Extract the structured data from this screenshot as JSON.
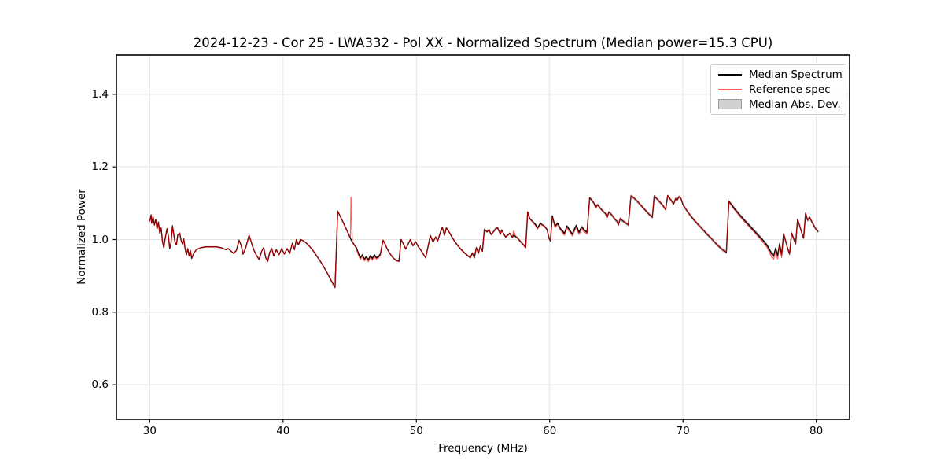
{
  "colors": {
    "median_line": "#000000",
    "reference_line": "#ff0000",
    "reference_legend": "#ff5959",
    "mad_band": "#c8c8c8",
    "grid": "#e4e4e4",
    "spine": "#000000",
    "background": "#ffffff"
  },
  "chart_data": {
    "type": "line",
    "title": "2024-12-23 - Cor 25 - LWA332 - Pol XX - Normalized Spectrum (Median power=15.3 CPU)",
    "xlabel": "Frequency (MHz)",
    "ylabel": "Normalized Power",
    "xlim": [
      27.5,
      82.5
    ],
    "ylim": [
      0.505,
      1.508
    ],
    "grid": true,
    "x_ticks": [
      30,
      40,
      50,
      60,
      70,
      80
    ],
    "x_tick_labels": [
      "30",
      "40",
      "50",
      "60",
      "70",
      "80"
    ],
    "y_ticks": [
      0.6,
      0.8,
      1.0,
      1.2,
      1.4
    ],
    "y_tick_labels": [
      "0.6",
      "0.8",
      "1.0",
      "1.2",
      "1.4"
    ],
    "legend": {
      "position": "upper right",
      "items": [
        {
          "label": "Median Spectrum",
          "type": "line"
        },
        {
          "label": "Reference spec",
          "type": "line"
        },
        {
          "label": "Median Abs. Dev.",
          "type": "patch"
        }
      ]
    },
    "points_format": "[frequency_MHz, median_power, reference_minus_median]",
    "points": [
      [
        30.0,
        1.05,
        0
      ],
      [
        30.1,
        1.068,
        0
      ],
      [
        30.15,
        1.045,
        0
      ],
      [
        30.25,
        1.062,
        0
      ],
      [
        30.35,
        1.04,
        0
      ],
      [
        30.45,
        1.055,
        0
      ],
      [
        30.55,
        1.03,
        0
      ],
      [
        30.65,
        1.048,
        0
      ],
      [
        30.75,
        1.018,
        0
      ],
      [
        30.85,
        1.032,
        0
      ],
      [
        30.95,
        0.996,
        0
      ],
      [
        31.05,
        0.978,
        0
      ],
      [
        31.15,
        1.002,
        0
      ],
      [
        31.3,
        1.03,
        0
      ],
      [
        31.4,
        1.008,
        0
      ],
      [
        31.5,
        0.975,
        0
      ],
      [
        31.6,
        0.992,
        0
      ],
      [
        31.7,
        1.038,
        0
      ],
      [
        31.8,
        1.015,
        0
      ],
      [
        31.9,
        0.992,
        0
      ],
      [
        32.0,
        0.985,
        0
      ],
      [
        32.1,
        1.012,
        0
      ],
      [
        32.25,
        1.018,
        0
      ],
      [
        32.35,
        0.998,
        0
      ],
      [
        32.45,
        0.988,
        0
      ],
      [
        32.55,
        1.002,
        0
      ],
      [
        32.65,
        0.975,
        0
      ],
      [
        32.75,
        0.958,
        0
      ],
      [
        32.85,
        0.975,
        0
      ],
      [
        32.95,
        0.955,
        0
      ],
      [
        33.05,
        0.97,
        0
      ],
      [
        33.15,
        0.948,
        0
      ],
      [
        33.3,
        0.962,
        0
      ],
      [
        33.5,
        0.972,
        0
      ],
      [
        33.8,
        0.977,
        0
      ],
      [
        34.2,
        0.98,
        0
      ],
      [
        34.6,
        0.98,
        0
      ],
      [
        35.0,
        0.98,
        0
      ],
      [
        35.4,
        0.977,
        0
      ],
      [
        35.7,
        0.972,
        0
      ],
      [
        35.9,
        0.975,
        0
      ],
      [
        36.1,
        0.968,
        0
      ],
      [
        36.3,
        0.962,
        0
      ],
      [
        36.5,
        0.97,
        0
      ],
      [
        36.7,
        0.998,
        0
      ],
      [
        36.85,
        0.985,
        0
      ],
      [
        37.0,
        0.96,
        0
      ],
      [
        37.2,
        0.978,
        0
      ],
      [
        37.45,
        1.012,
        0
      ],
      [
        37.6,
        0.995,
        0
      ],
      [
        37.8,
        0.972,
        0
      ],
      [
        38.0,
        0.957,
        0
      ],
      [
        38.2,
        0.945,
        0
      ],
      [
        38.4,
        0.968,
        0
      ],
      [
        38.55,
        0.978,
        0
      ],
      [
        38.7,
        0.95,
        0
      ],
      [
        38.85,
        0.94,
        0
      ],
      [
        39.0,
        0.965,
        0
      ],
      [
        39.15,
        0.975,
        0
      ],
      [
        39.3,
        0.955,
        0
      ],
      [
        39.5,
        0.972,
        0
      ],
      [
        39.7,
        0.958,
        0
      ],
      [
        39.9,
        0.975,
        0
      ],
      [
        40.1,
        0.96,
        0
      ],
      [
        40.3,
        0.975,
        0
      ],
      [
        40.5,
        0.962,
        0
      ],
      [
        40.7,
        0.99,
        0
      ],
      [
        40.85,
        0.972,
        0
      ],
      [
        41.0,
        1.0,
        0
      ],
      [
        41.15,
        0.985,
        0
      ],
      [
        41.3,
        1.0,
        0
      ],
      [
        41.5,
        0.997,
        0
      ],
      [
        41.7,
        0.992,
        0
      ],
      [
        41.9,
        0.985,
        0
      ],
      [
        42.2,
        0.972,
        0
      ],
      [
        42.5,
        0.956,
        0
      ],
      [
        42.8,
        0.94,
        0
      ],
      [
        43.1,
        0.922,
        0
      ],
      [
        43.4,
        0.902,
        0
      ],
      [
        43.65,
        0.884,
        0
      ],
      [
        43.9,
        0.868,
        0
      ],
      [
        44.1,
        1.078,
        0
      ],
      [
        44.3,
        1.063,
        0
      ],
      [
        44.5,
        1.048,
        0
      ],
      [
        44.7,
        1.032,
        0
      ],
      [
        44.9,
        1.016,
        0
      ],
      [
        45.05,
        1.004,
        0
      ],
      [
        45.1,
        1.0,
        0.117
      ],
      [
        45.2,
        0.993,
        0
      ],
      [
        45.35,
        0.985,
        0
      ],
      [
        45.5,
        0.978,
        -0.004
      ],
      [
        45.65,
        0.962,
        -0.005
      ],
      [
        45.8,
        0.95,
        -0.005
      ],
      [
        45.95,
        0.958,
        -0.005
      ],
      [
        46.1,
        0.946,
        -0.005
      ],
      [
        46.25,
        0.953,
        -0.005
      ],
      [
        46.4,
        0.944,
        -0.005
      ],
      [
        46.55,
        0.956,
        -0.005
      ],
      [
        46.7,
        0.948,
        -0.005
      ],
      [
        46.85,
        0.958,
        -0.005
      ],
      [
        47.0,
        0.95,
        -0.004
      ],
      [
        47.15,
        0.953,
        -0.004
      ],
      [
        47.3,
        0.96,
        -0.004
      ],
      [
        47.5,
        0.998,
        0
      ],
      [
        47.65,
        0.988,
        0
      ],
      [
        47.8,
        0.975,
        0
      ],
      [
        48.0,
        0.962,
        0
      ],
      [
        48.2,
        0.952,
        0
      ],
      [
        48.45,
        0.943,
        0
      ],
      [
        48.7,
        0.94,
        0
      ],
      [
        48.85,
        1.0,
        0
      ],
      [
        49.0,
        0.99,
        0
      ],
      [
        49.2,
        0.974,
        0
      ],
      [
        49.55,
        1.0,
        0
      ],
      [
        49.75,
        0.983,
        0
      ],
      [
        49.95,
        0.994,
        0
      ],
      [
        50.15,
        0.98,
        0
      ],
      [
        50.35,
        0.97,
        0
      ],
      [
        50.55,
        0.958,
        0
      ],
      [
        50.7,
        0.95,
        0
      ],
      [
        51.05,
        1.011,
        0
      ],
      [
        51.25,
        0.993,
        0
      ],
      [
        51.45,
        1.007,
        0
      ],
      [
        51.6,
        0.996,
        0
      ],
      [
        51.8,
        1.02,
        0
      ],
      [
        51.95,
        1.034,
        0
      ],
      [
        52.1,
        1.012,
        0
      ],
      [
        52.25,
        1.032,
        0
      ],
      [
        52.45,
        1.021,
        0
      ],
      [
        52.65,
        1.008,
        0
      ],
      [
        52.85,
        0.996,
        0
      ],
      [
        53.05,
        0.986,
        0
      ],
      [
        53.25,
        0.977,
        0
      ],
      [
        53.45,
        0.969,
        0
      ],
      [
        53.65,
        0.962,
        0
      ],
      [
        53.85,
        0.956,
        0
      ],
      [
        54.05,
        0.95,
        0
      ],
      [
        54.2,
        0.963,
        0
      ],
      [
        54.35,
        0.95,
        0
      ],
      [
        54.5,
        0.978,
        0
      ],
      [
        54.65,
        0.962,
        0
      ],
      [
        54.8,
        0.982,
        0
      ],
      [
        54.95,
        0.968,
        0
      ],
      [
        55.1,
        1.028,
        0
      ],
      [
        55.3,
        1.021,
        0
      ],
      [
        55.45,
        1.027,
        0
      ],
      [
        55.6,
        1.014,
        0
      ],
      [
        55.8,
        1.022,
        0
      ],
      [
        55.95,
        1.03,
        0
      ],
      [
        56.1,
        1.032,
        0
      ],
      [
        56.3,
        1.015,
        0
      ],
      [
        56.4,
        1.026,
        0
      ],
      [
        56.55,
        1.016,
        0
      ],
      [
        56.7,
        1.007,
        0
      ],
      [
        56.85,
        1.012,
        0
      ],
      [
        57.0,
        1.017,
        0
      ],
      [
        57.2,
        1.006,
        0
      ],
      [
        57.3,
        1.012,
        0.012
      ],
      [
        57.45,
        1.008,
        0
      ],
      [
        57.6,
        1.004,
        0
      ],
      [
        57.75,
        0.997,
        0
      ],
      [
        57.9,
        0.991,
        0
      ],
      [
        58.05,
        0.985,
        0
      ],
      [
        58.2,
        0.978,
        0
      ],
      [
        58.35,
        1.076,
        0
      ],
      [
        58.5,
        1.058,
        0
      ],
      [
        58.7,
        1.05,
        0
      ],
      [
        58.9,
        1.043,
        -0.003
      ],
      [
        59.1,
        1.032,
        -0.003
      ],
      [
        59.3,
        1.045,
        -0.003
      ],
      [
        59.45,
        1.04,
        0
      ],
      [
        59.6,
        1.037,
        0
      ],
      [
        59.8,
        1.028,
        0
      ],
      [
        59.95,
        1.004,
        0
      ],
      [
        60.05,
        0.996,
        0
      ],
      [
        60.2,
        1.065,
        -0.004
      ],
      [
        60.4,
        1.037,
        -0.004
      ],
      [
        60.6,
        1.045,
        -0.004
      ],
      [
        60.8,
        1.03,
        -0.004
      ],
      [
        61.0,
        1.022,
        -0.005
      ],
      [
        61.1,
        1.017,
        -0.005
      ],
      [
        61.3,
        1.037,
        -0.005
      ],
      [
        61.5,
        1.026,
        -0.005
      ],
      [
        61.7,
        1.015,
        -0.005
      ],
      [
        61.9,
        1.032,
        -0.006
      ],
      [
        62.0,
        1.039,
        -0.006
      ],
      [
        62.2,
        1.02,
        -0.006
      ],
      [
        62.4,
        1.035,
        -0.006
      ],
      [
        62.6,
        1.026,
        -0.005
      ],
      [
        62.8,
        1.02,
        -0.005
      ],
      [
        63.0,
        1.115,
        0
      ],
      [
        63.15,
        1.109,
        0
      ],
      [
        63.3,
        1.102,
        0
      ],
      [
        63.45,
        1.088,
        0
      ],
      [
        63.6,
        1.096,
        0
      ],
      [
        63.8,
        1.086,
        0
      ],
      [
        64.0,
        1.078,
        0
      ],
      [
        64.2,
        1.071,
        0
      ],
      [
        64.3,
        1.06,
        0
      ],
      [
        64.45,
        1.076,
        0
      ],
      [
        64.65,
        1.068,
        0
      ],
      [
        64.85,
        1.058,
        0
      ],
      [
        65.05,
        1.05,
        0
      ],
      [
        65.15,
        1.04,
        0
      ],
      [
        65.3,
        1.058,
        0
      ],
      [
        65.5,
        1.051,
        0
      ],
      [
        65.7,
        1.046,
        0
      ],
      [
        65.9,
        1.04,
        0
      ],
      [
        66.1,
        1.12,
        0
      ],
      [
        66.3,
        1.115,
        0
      ],
      [
        66.5,
        1.108,
        0
      ],
      [
        66.7,
        1.1,
        0
      ],
      [
        66.9,
        1.092,
        0
      ],
      [
        67.1,
        1.084,
        0
      ],
      [
        67.3,
        1.076,
        0
      ],
      [
        67.5,
        1.068,
        0
      ],
      [
        67.7,
        1.061,
        0
      ],
      [
        67.85,
        1.12,
        0
      ],
      [
        68.05,
        1.112,
        0
      ],
      [
        68.25,
        1.104,
        0
      ],
      [
        68.45,
        1.096,
        0
      ],
      [
        68.6,
        1.088,
        0
      ],
      [
        68.7,
        1.082,
        0
      ],
      [
        68.85,
        1.121,
        0
      ],
      [
        69.0,
        1.114,
        0
      ],
      [
        69.15,
        1.106,
        0
      ],
      [
        69.3,
        1.098,
        0
      ],
      [
        69.45,
        1.113,
        0
      ],
      [
        69.55,
        1.108,
        0
      ],
      [
        69.7,
        1.118,
        0
      ],
      [
        69.85,
        1.113,
        0
      ],
      [
        70.0,
        1.096,
        0
      ],
      [
        70.3,
        1.079,
        0
      ],
      [
        70.6,
        1.064,
        0
      ],
      [
        70.9,
        1.051,
        0
      ],
      [
        71.2,
        1.039,
        0
      ],
      [
        71.5,
        1.027,
        0
      ],
      [
        71.8,
        1.015,
        0
      ],
      [
        72.1,
        1.004,
        0
      ],
      [
        72.4,
        0.992,
        0
      ],
      [
        72.7,
        0.981,
        0
      ],
      [
        73.0,
        0.971,
        0
      ],
      [
        73.25,
        0.964,
        0
      ],
      [
        73.45,
        1.105,
        0
      ],
      [
        73.65,
        1.096,
        -0.003
      ],
      [
        73.85,
        1.086,
        -0.003
      ],
      [
        74.05,
        1.077,
        -0.003
      ],
      [
        74.3,
        1.066,
        -0.003
      ],
      [
        74.55,
        1.056,
        -0.004
      ],
      [
        74.8,
        1.046,
        -0.004
      ],
      [
        75.05,
        1.036,
        -0.004
      ],
      [
        75.3,
        1.026,
        -0.004
      ],
      [
        75.55,
        1.016,
        -0.004
      ],
      [
        75.8,
        1.006,
        -0.005
      ],
      [
        76.05,
        0.996,
        -0.005
      ],
      [
        76.3,
        0.985,
        -0.006
      ],
      [
        76.5,
        0.972,
        -0.008
      ],
      [
        76.65,
        0.961,
        -0.009
      ],
      [
        76.8,
        0.955,
        -0.01
      ],
      [
        76.95,
        0.976,
        -0.008
      ],
      [
        77.1,
        0.956,
        -0.01
      ],
      [
        77.25,
        0.988,
        -0.006
      ],
      [
        77.4,
        0.958,
        -0.008
      ],
      [
        77.55,
        1.016,
        0
      ],
      [
        77.7,
        0.996,
        0
      ],
      [
        77.85,
        0.976,
        0
      ],
      [
        78.0,
        0.96,
        0
      ],
      [
        78.15,
        1.018,
        0
      ],
      [
        78.3,
        1.003,
        0
      ],
      [
        78.45,
        0.988,
        0
      ],
      [
        78.6,
        1.056,
        0
      ],
      [
        78.75,
        1.038,
        0
      ],
      [
        78.9,
        1.02,
        0
      ],
      [
        79.05,
        1.004,
        0
      ],
      [
        79.2,
        1.073,
        0
      ],
      [
        79.35,
        1.053,
        0
      ],
      [
        79.5,
        1.061,
        0
      ],
      [
        79.65,
        1.05,
        0
      ],
      [
        79.8,
        1.04,
        0
      ],
      [
        79.95,
        1.03,
        0
      ],
      [
        80.15,
        1.021,
        0
      ]
    ],
    "mad_halfwidth": [
      [
        30,
        0.002
      ],
      [
        43,
        0.002
      ],
      [
        44,
        0.003
      ],
      [
        50,
        0.003
      ],
      [
        58,
        0.004
      ],
      [
        63,
        0.0045
      ],
      [
        66,
        0.005
      ],
      [
        70,
        0.005
      ],
      [
        73,
        0.0055
      ],
      [
        76,
        0.006
      ],
      [
        80.2,
        0.0055
      ]
    ]
  }
}
